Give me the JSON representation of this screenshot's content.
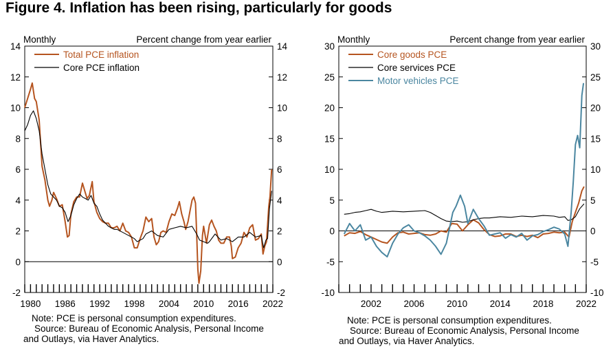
{
  "figure_title": "Figure 4. Inflation has been rising, particularly for goods",
  "chart_data": [
    {
      "type": "line",
      "left_unit_label": "Monthly",
      "right_unit_label": "Percent change from year earlier",
      "xlim": [
        1979.0,
        2022.0
      ],
      "ylim": [
        -2,
        14
      ],
      "yticks": [
        -2,
        0,
        2,
        4,
        6,
        8,
        10,
        12,
        14
      ],
      "xtick_labels": [
        "1980",
        "1986",
        "1992",
        "1998",
        "2004",
        "2010",
        "2016",
        "2022"
      ],
      "xtick_values": [
        1980,
        1986,
        1992,
        1998,
        2004,
        2010,
        2016,
        2022
      ],
      "legend_position": "top-left",
      "series": [
        {
          "name": "Total PCE inflation",
          "color": "#b5541f",
          "x": [
            1979.0,
            1979.5,
            1980.0,
            1980.3,
            1980.7,
            1981.0,
            1981.5,
            1982.0,
            1982.5,
            1983.0,
            1983.3,
            1983.7,
            1984.0,
            1984.5,
            1985.0,
            1985.5,
            1986.0,
            1986.4,
            1986.7,
            1987.0,
            1987.5,
            1988.0,
            1988.5,
            1989.0,
            1989.4,
            1989.8,
            1990.2,
            1990.7,
            1991.0,
            1991.5,
            1992.0,
            1992.5,
            1993.0,
            1993.5,
            1994.0,
            1994.5,
            1995.0,
            1995.5,
            1996.0,
            1996.5,
            1997.0,
            1997.5,
            1998.0,
            1998.5,
            1999.0,
            1999.5,
            2000.0,
            2000.5,
            2001.0,
            2001.4,
            2001.8,
            2002.2,
            2002.6,
            2003.0,
            2003.5,
            2004.0,
            2004.5,
            2005.0,
            2005.5,
            2005.8,
            2006.2,
            2006.6,
            2006.9,
            2007.3,
            2007.7,
            2008.0,
            2008.3,
            2008.6,
            2008.8,
            2009.0,
            2009.2,
            2009.5,
            2009.8,
            2010.0,
            2010.5,
            2011.0,
            2011.4,
            2011.8,
            2012.2,
            2012.6,
            2013.0,
            2013.5,
            2014.0,
            2014.5,
            2014.8,
            2015.0,
            2015.5,
            2016.0,
            2016.5,
            2017.0,
            2017.5,
            2018.0,
            2018.5,
            2019.0,
            2019.5,
            2020.0,
            2020.3,
            2020.6,
            2020.9,
            2021.1,
            2021.3,
            2021.5,
            2021.8
          ],
          "y": [
            10.0,
            10.6,
            11.2,
            11.6,
            10.6,
            10.4,
            9.2,
            6.2,
            5.3,
            4.0,
            3.6,
            4.0,
            4.5,
            4.1,
            3.6,
            3.7,
            2.6,
            1.6,
            1.7,
            3.1,
            3.9,
            4.2,
            4.2,
            5.1,
            4.6,
            4.1,
            4.3,
            5.2,
            3.9,
            3.2,
            2.8,
            2.6,
            2.5,
            2.5,
            2.2,
            2.2,
            2.3,
            2.0,
            2.5,
            2.0,
            1.9,
            1.6,
            0.9,
            0.9,
            1.5,
            2.0,
            2.9,
            2.6,
            2.8,
            1.6,
            1.1,
            1.3,
            1.9,
            2.0,
            1.9,
            2.6,
            3.1,
            3.0,
            3.5,
            3.9,
            3.1,
            2.6,
            2.1,
            2.6,
            3.4,
            4.0,
            4.2,
            3.8,
            1.8,
            -0.5,
            -1.4,
            -0.6,
            1.7,
            2.3,
            1.2,
            2.4,
            2.7,
            2.3,
            2.0,
            1.4,
            1.2,
            1.2,
            1.6,
            1.6,
            1.0,
            0.2,
            0.3,
            0.9,
            1.2,
            1.9,
            1.6,
            2.2,
            2.4,
            1.4,
            1.5,
            1.8,
            0.5,
            1.0,
            1.3,
            2.4,
            3.6,
            4.2,
            6.0
          ]
        },
        {
          "name": "Core PCE inflation",
          "color": "#000000",
          "x": [
            1979.0,
            1979.5,
            1980.0,
            1980.5,
            1981.0,
            1981.5,
            1982.0,
            1982.5,
            1983.0,
            1983.5,
            1984.0,
            1984.5,
            1985.0,
            1985.5,
            1986.0,
            1986.5,
            1987.0,
            1987.5,
            1988.0,
            1988.5,
            1989.0,
            1989.5,
            1990.0,
            1990.5,
            1991.0,
            1991.5,
            1992.0,
            1992.5,
            1993.0,
            1993.5,
            1994.0,
            1994.5,
            1995.0,
            1996.0,
            1997.0,
            1998.0,
            1998.5,
            1999.0,
            1999.5,
            2000.0,
            2001.0,
            2002.0,
            2003.0,
            2004.0,
            2005.0,
            2006.0,
            2007.0,
            2008.0,
            2008.8,
            2009.3,
            2010.0,
            2010.7,
            2011.0,
            2012.0,
            2013.0,
            2014.0,
            2015.0,
            2016.0,
            2017.0,
            2018.0,
            2019.0,
            2020.0,
            2020.4,
            2020.8,
            2021.1,
            2021.4,
            2021.8
          ],
          "y": [
            8.5,
            8.9,
            9.5,
            9.8,
            9.3,
            8.5,
            7.0,
            6.0,
            5.0,
            4.4,
            4.2,
            4.0,
            3.6,
            3.5,
            3.2,
            2.6,
            3.0,
            3.7,
            4.1,
            4.4,
            4.2,
            4.1,
            4.0,
            4.3,
            3.8,
            3.6,
            3.1,
            2.7,
            2.5,
            2.3,
            2.2,
            2.1,
            2.1,
            1.9,
            1.7,
            1.5,
            1.3,
            1.4,
            1.5,
            1.8,
            2.0,
            1.7,
            1.6,
            2.1,
            2.2,
            2.3,
            2.2,
            2.3,
            1.8,
            1.4,
            1.3,
            1.2,
            1.3,
            1.8,
            1.4,
            1.5,
            1.3,
            1.6,
            1.6,
            1.9,
            1.6,
            1.7,
            0.9,
            1.4,
            1.5,
            3.4,
            4.6
          ]
        }
      ]
    },
    {
      "type": "line",
      "left_unit_label": "Monthly",
      "right_unit_label": "Percent change from year earlier",
      "xlim": [
        1999.0,
        2022.0
      ],
      "ylim": [
        -10,
        30
      ],
      "yticks": [
        -10,
        -5,
        0,
        5,
        10,
        15,
        20,
        25,
        30
      ],
      "xtick_labels": [
        "2002",
        "2006",
        "2010",
        "2014",
        "2018",
        "2022"
      ],
      "xtick_values": [
        2002,
        2006,
        2010,
        2014,
        2018,
        2022
      ],
      "legend_position": "top-left",
      "series": [
        {
          "name": "Core goods PCE",
          "color": "#b5541f",
          "x": [
            1999.5,
            2000.0,
            2000.5,
            2001.0,
            2001.5,
            2002.0,
            2002.5,
            2003.0,
            2003.5,
            2004.0,
            2004.5,
            2005.0,
            2005.5,
            2006.0,
            2006.5,
            2007.0,
            2007.5,
            2008.0,
            2008.5,
            2009.0,
            2009.5,
            2010.0,
            2010.5,
            2011.0,
            2011.5,
            2012.0,
            2012.5,
            2013.0,
            2013.5,
            2014.0,
            2014.5,
            2015.0,
            2015.5,
            2016.0,
            2016.5,
            2017.0,
            2017.5,
            2018.0,
            2018.5,
            2019.0,
            2019.5,
            2020.0,
            2020.4,
            2020.7,
            2021.0,
            2021.3,
            2021.6,
            2021.8
          ],
          "y": [
            -0.8,
            -0.3,
            -0.4,
            -0.1,
            -0.6,
            -1.0,
            -1.4,
            -1.8,
            -2.0,
            -1.0,
            -0.3,
            -0.2,
            -0.5,
            -0.4,
            -0.3,
            -0.6,
            -0.7,
            -0.5,
            0.0,
            -0.2,
            1.2,
            1.1,
            0.0,
            1.0,
            1.8,
            1.3,
            0.2,
            -0.6,
            -0.9,
            -0.8,
            -0.5,
            -0.5,
            -0.9,
            -0.7,
            -0.9,
            -0.7,
            -1.1,
            -0.5,
            -0.4,
            -0.2,
            -0.3,
            -0.2,
            -1.0,
            1.5,
            3.0,
            4.5,
            6.5,
            7.2
          ]
        },
        {
          "name": "Core services PCE",
          "color": "#000000",
          "x": [
            1999.5,
            2000.0,
            2000.5,
            2001.0,
            2001.5,
            2002.0,
            2002.5,
            2003.0,
            2003.5,
            2004.0,
            2005.0,
            2006.0,
            2007.0,
            2007.5,
            2008.0,
            2008.5,
            2009.0,
            2009.5,
            2010.0,
            2010.5,
            2011.0,
            2011.5,
            2012.0,
            2012.5,
            2013.0,
            2014.0,
            2015.0,
            2016.0,
            2017.0,
            2018.0,
            2019.0,
            2019.5,
            2020.0,
            2020.3,
            2020.6,
            2021.0,
            2021.4,
            2021.8
          ],
          "y": [
            2.7,
            2.8,
            3.0,
            3.1,
            3.3,
            3.5,
            3.2,
            3.0,
            3.1,
            3.2,
            3.1,
            3.2,
            3.3,
            3.0,
            2.5,
            2.0,
            1.6,
            1.5,
            1.6,
            1.4,
            1.5,
            1.8,
            2.0,
            2.1,
            2.1,
            2.3,
            2.2,
            2.4,
            2.3,
            2.5,
            2.4,
            2.2,
            2.3,
            1.7,
            1.8,
            2.3,
            3.6,
            4.4
          ]
        },
        {
          "name": "Motor vehicles PCE",
          "color": "#4a86a0",
          "x": [
            1999.5,
            2000.0,
            2000.5,
            2001.0,
            2001.5,
            2002.0,
            2002.5,
            2003.0,
            2003.5,
            2004.0,
            2004.5,
            2005.0,
            2005.5,
            2006.0,
            2006.5,
            2007.0,
            2007.5,
            2008.0,
            2008.5,
            2009.0,
            2009.3,
            2009.6,
            2009.9,
            2010.3,
            2010.7,
            2011.0,
            2011.5,
            2012.0,
            2012.5,
            2013.0,
            2013.5,
            2014.0,
            2014.5,
            2015.0,
            2015.5,
            2016.0,
            2016.5,
            2017.0,
            2017.5,
            2018.0,
            2018.5,
            2019.0,
            2019.5,
            2020.0,
            2020.3,
            2020.6,
            2020.8,
            2021.0,
            2021.2,
            2021.4,
            2021.6,
            2021.75
          ],
          "y": [
            -0.5,
            1.2,
            0.0,
            1.0,
            -1.5,
            -1.0,
            -2.5,
            -3.5,
            -4.2,
            -2.0,
            -0.5,
            0.5,
            1.0,
            0.0,
            -0.3,
            -0.8,
            -1.5,
            -2.5,
            -3.8,
            -2.0,
            0.5,
            3.0,
            4.0,
            5.8,
            4.0,
            1.2,
            3.5,
            2.0,
            0.8,
            -0.7,
            -0.5,
            -0.3,
            -1.2,
            -0.6,
            -1.0,
            -0.4,
            -1.5,
            -0.8,
            -0.6,
            -0.1,
            0.2,
            0.6,
            0.3,
            -0.5,
            -2.5,
            3.0,
            8.0,
            14.0,
            15.5,
            13.5,
            22.0,
            24.0
          ]
        }
      ]
    }
  ],
  "notes": [
    {
      "note_text": "Note: PCE is personal consumption expenditures.",
      "source_line_1": "Source: Bureau of Economic Analysis, Personal Income",
      "source_line_2": "and Outlays, via Haver Analytics."
    },
    {
      "note_text": "Note: PCE is personal consumption expenditures.",
      "source_line_1": "Source: Bureau of Economic Analysis, Personal Income",
      "source_line_2": "and Outlays, via Haver Analytics."
    }
  ]
}
